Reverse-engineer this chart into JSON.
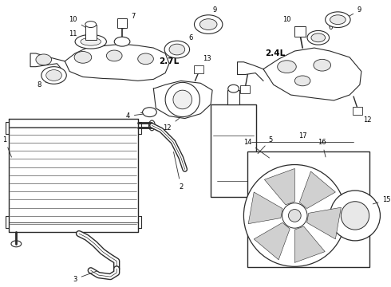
{
  "bg_color": "#ffffff",
  "line_color": "#2a2a2a",
  "label_color": "#000000"
}
